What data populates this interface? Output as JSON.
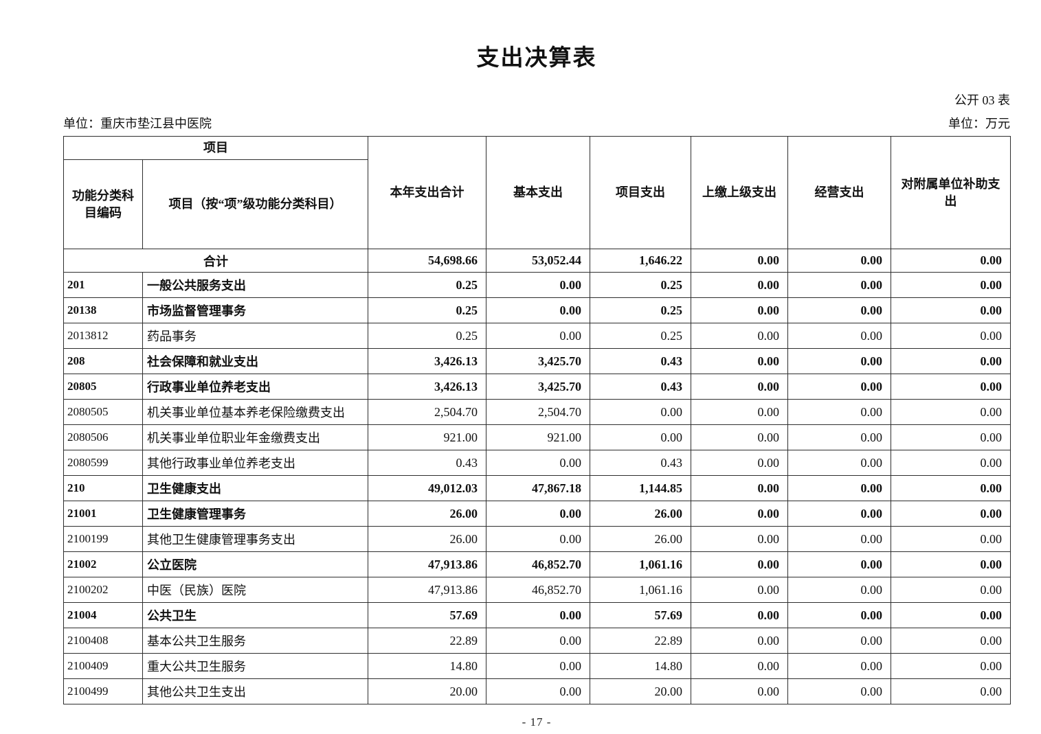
{
  "page": {
    "title": "支出决算表",
    "table_no": "公开 03 表",
    "unit_left": "单位：重庆市垫江县中医院",
    "unit_right": "单位：万元",
    "footer": "- 17 -"
  },
  "colors": {
    "background": "#ffffff",
    "text": "#111111",
    "border": "#2d2d2d"
  },
  "table": {
    "header": {
      "group": "项目",
      "code_col": "功能分类科目编码",
      "item_col": "项目（按“项”级功能分类科目）",
      "cols": [
        "本年支出合计",
        "基本支出",
        "项目支出",
        "上缴上级支出",
        "经营支出",
        "对附属单位补助支出"
      ]
    },
    "rows": [
      {
        "code": "",
        "name": "合计",
        "merged": true,
        "bold": true,
        "values": [
          "54,698.66",
          "53,052.44",
          "1,646.22",
          "0.00",
          "0.00",
          "0.00"
        ]
      },
      {
        "code": "201",
        "name": "一般公共服务支出",
        "merged": false,
        "bold": true,
        "values": [
          "0.25",
          "0.00",
          "0.25",
          "0.00",
          "0.00",
          "0.00"
        ]
      },
      {
        "code": "20138",
        "name": "市场监督管理事务",
        "merged": false,
        "bold": true,
        "values": [
          "0.25",
          "0.00",
          "0.25",
          "0.00",
          "0.00",
          "0.00"
        ]
      },
      {
        "code": "2013812",
        "name": "药品事务",
        "merged": false,
        "bold": false,
        "values": [
          "0.25",
          "0.00",
          "0.25",
          "0.00",
          "0.00",
          "0.00"
        ]
      },
      {
        "code": "208",
        "name": "社会保障和就业支出",
        "merged": false,
        "bold": true,
        "values": [
          "3,426.13",
          "3,425.70",
          "0.43",
          "0.00",
          "0.00",
          "0.00"
        ]
      },
      {
        "code": "20805",
        "name": "行政事业单位养老支出",
        "merged": false,
        "bold": true,
        "values": [
          "3,426.13",
          "3,425.70",
          "0.43",
          "0.00",
          "0.00",
          "0.00"
        ]
      },
      {
        "code": "2080505",
        "name": "机关事业单位基本养老保险缴费支出",
        "merged": false,
        "bold": false,
        "values": [
          "2,504.70",
          "2,504.70",
          "0.00",
          "0.00",
          "0.00",
          "0.00"
        ]
      },
      {
        "code": "2080506",
        "name": "机关事业单位职业年金缴费支出",
        "merged": false,
        "bold": false,
        "values": [
          "921.00",
          "921.00",
          "0.00",
          "0.00",
          "0.00",
          "0.00"
        ]
      },
      {
        "code": "2080599",
        "name": "其他行政事业单位养老支出",
        "merged": false,
        "bold": false,
        "values": [
          "0.43",
          "0.00",
          "0.43",
          "0.00",
          "0.00",
          "0.00"
        ]
      },
      {
        "code": "210",
        "name": "卫生健康支出",
        "merged": false,
        "bold": true,
        "values": [
          "49,012.03",
          "47,867.18",
          "1,144.85",
          "0.00",
          "0.00",
          "0.00"
        ]
      },
      {
        "code": "21001",
        "name": "卫生健康管理事务",
        "merged": false,
        "bold": true,
        "values": [
          "26.00",
          "0.00",
          "26.00",
          "0.00",
          "0.00",
          "0.00"
        ]
      },
      {
        "code": "2100199",
        "name": "其他卫生健康管理事务支出",
        "merged": false,
        "bold": false,
        "values": [
          "26.00",
          "0.00",
          "26.00",
          "0.00",
          "0.00",
          "0.00"
        ]
      },
      {
        "code": "21002",
        "name": "公立医院",
        "merged": false,
        "bold": true,
        "values": [
          "47,913.86",
          "46,852.70",
          "1,061.16",
          "0.00",
          "0.00",
          "0.00"
        ]
      },
      {
        "code": "2100202",
        "name": "中医（民族）医院",
        "merged": false,
        "bold": false,
        "values": [
          "47,913.86",
          "46,852.70",
          "1,061.16",
          "0.00",
          "0.00",
          "0.00"
        ]
      },
      {
        "code": "21004",
        "name": "公共卫生",
        "merged": false,
        "bold": true,
        "values": [
          "57.69",
          "0.00",
          "57.69",
          "0.00",
          "0.00",
          "0.00"
        ]
      },
      {
        "code": "2100408",
        "name": "基本公共卫生服务",
        "merged": false,
        "bold": false,
        "values": [
          "22.89",
          "0.00",
          "22.89",
          "0.00",
          "0.00",
          "0.00"
        ]
      },
      {
        "code": "2100409",
        "name": "重大公共卫生服务",
        "merged": false,
        "bold": false,
        "values": [
          "14.80",
          "0.00",
          "14.80",
          "0.00",
          "0.00",
          "0.00"
        ]
      },
      {
        "code": "2100499",
        "name": "其他公共卫生支出",
        "merged": false,
        "bold": false,
        "values": [
          "20.00",
          "0.00",
          "20.00",
          "0.00",
          "0.00",
          "0.00"
        ]
      }
    ]
  }
}
